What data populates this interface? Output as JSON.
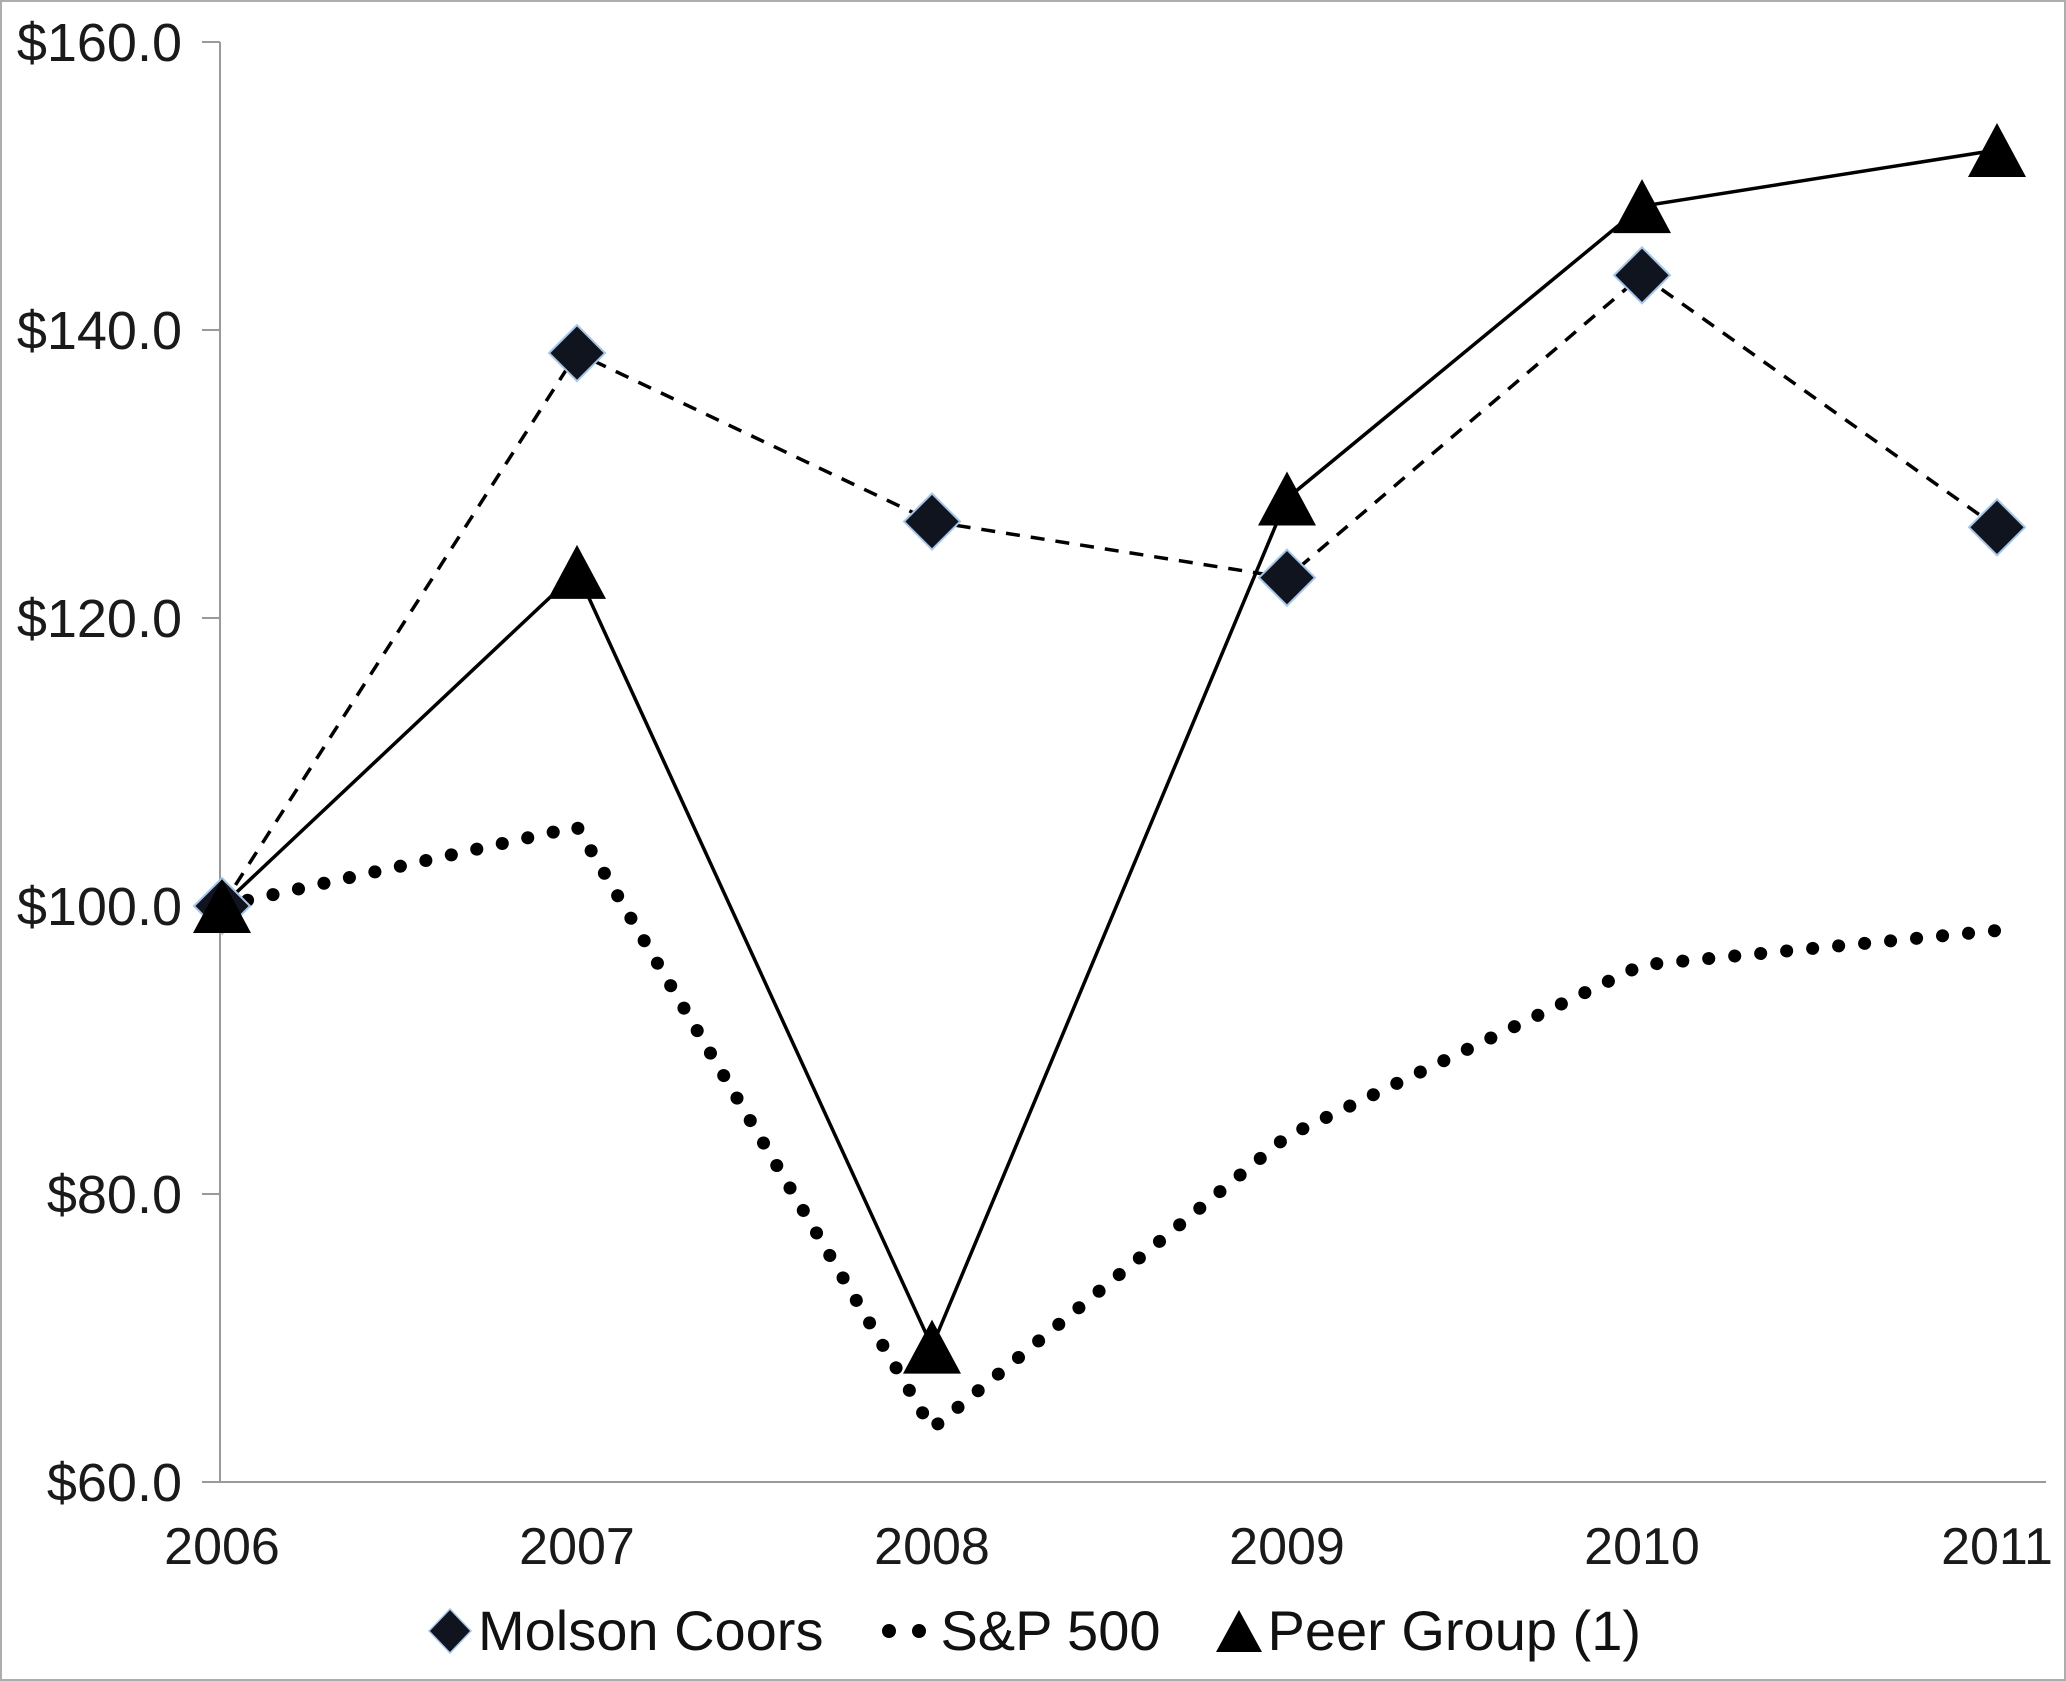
{
  "chart_data": {
    "type": "line",
    "title": "",
    "categories": [
      "2006",
      "2007",
      "2008",
      "2009",
      "2010",
      "2011"
    ],
    "series": [
      {
        "name": "Molson Coors",
        "marker": "diamond",
        "line_style": "dashed",
        "values": [
          100.0,
          138.4,
          126.7,
          122.8,
          143.8,
          126.3
        ]
      },
      {
        "name": "S&P 500",
        "marker": "dot",
        "line_style": "dotted",
        "values": [
          100.0,
          105.5,
          63.7,
          84.0,
          95.9,
          98.3
        ]
      },
      {
        "name": "Peer Group (1)",
        "marker": "triangle",
        "line_style": "solid",
        "values": [
          100.0,
          123.2,
          69.4,
          128.3,
          148.6,
          152.5
        ]
      }
    ],
    "xlabel": "",
    "ylabel": "",
    "ylim": [
      60,
      160
    ],
    "y_tick_step": 20,
    "y_tick_labels": [
      "$160.0",
      "$140.0",
      "$120.0",
      "$100.0",
      "$80.0",
      "$60.0"
    ],
    "grid": false,
    "legend_position": "bottom"
  },
  "colors": {
    "series_line": "#000000",
    "diamond_fill": "#10141f",
    "diamond_edge": "#a8c6e8",
    "triangle_fill": "#000000",
    "dot_fill": "#000000",
    "axis": "#9a9a9a",
    "text": "#1a1a1a",
    "background": "#ffffff",
    "border": "#adadad"
  }
}
